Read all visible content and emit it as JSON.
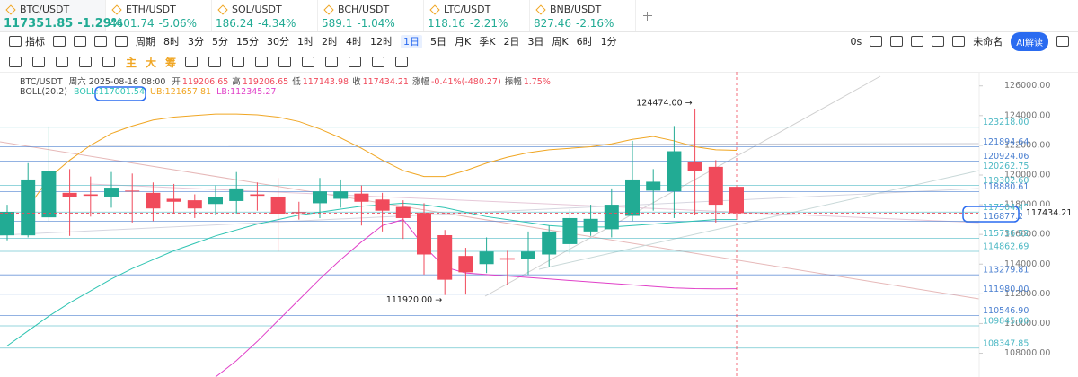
{
  "tickers": [
    {
      "symbol": "BTC/USDT",
      "price": "117351.85",
      "change": "-1.29%"
    },
    {
      "symbol": "ETH/USDT",
      "price": "4401.74",
      "change": "-5.06%"
    },
    {
      "symbol": "SOL/USDT",
      "price": "186.24",
      "change": "-4.34%"
    },
    {
      "symbol": "BCH/USDT",
      "price": "589.1",
      "change": "-1.04%"
    },
    {
      "symbol": "LTC/USDT",
      "price": "118.16",
      "change": "-2.21%"
    },
    {
      "symbol": "BNB/USDT",
      "price": "827.46",
      "change": "-2.16%"
    }
  ],
  "toolbar": {
    "indicator": "指标",
    "period": "周期",
    "intervals": [
      {
        "label": "8时"
      },
      {
        "label": "3分"
      },
      {
        "label": "5分"
      },
      {
        "label": "15分"
      },
      {
        "label": "30分"
      },
      {
        "label": "1时"
      },
      {
        "label": "2时"
      },
      {
        "label": "4时"
      },
      {
        "label": "12时"
      },
      {
        "label": "1日",
        "active": true
      },
      {
        "label": "5日"
      },
      {
        "label": "月K"
      },
      {
        "label": "季K"
      },
      {
        "label": "2日"
      },
      {
        "label": "3日"
      },
      {
        "label": "周K"
      },
      {
        "label": "6时"
      },
      {
        "label": "1分"
      }
    ],
    "timer": "0s",
    "layout_name": "未命名",
    "ai_button": "AI解读"
  },
  "draw_tools": [
    "主",
    "大",
    "筹"
  ],
  "info": {
    "symbol": "BTC/USDT",
    "time": "周六 2025-08-16 08:00",
    "fields": [
      {
        "label": "开",
        "value": "119206.65"
      },
      {
        "label": "高",
        "value": "119206.65"
      },
      {
        "label": "低",
        "value": "117143.98"
      },
      {
        "label": "收",
        "value": "117434.21"
      },
      {
        "label": "涨幅",
        "value": "-0.41%(-480.27)"
      },
      {
        "label": "振幅",
        "value": "1.75%"
      }
    ],
    "indicator": "BOLL(20,2)"
  },
  "chart_data": {
    "type": "candlestick",
    "open": [
      115940,
      115940,
      117150,
      118800,
      118700,
      118550,
      118950,
      118800,
      118400,
      118300,
      118050,
      118250,
      118700,
      118550,
      117500,
      118100,
      118400,
      118750,
      118350,
      117850,
      117450,
      115950,
      114550,
      114000,
      114400,
      114350,
      114650,
      115350,
      116200,
      116350,
      117250,
      118950,
      118900,
      120900,
      120550,
      119206.65
    ],
    "high": [
      118000,
      120800,
      123270,
      120400,
      119900,
      120200,
      120100,
      119500,
      119400,
      118700,
      119300,
      120200,
      119500,
      119800,
      118200,
      119800,
      119700,
      119300,
      118800,
      118300,
      118100,
      116300,
      115100,
      115800,
      114900,
      116200,
      116600,
      117700,
      118000,
      119100,
      122300,
      120400,
      123300,
      124474,
      121000,
      119206.65
    ],
    "low": [
      115600,
      115800,
      116900,
      115900,
      117200,
      117800,
      116800,
      116900,
      117400,
      117100,
      117300,
      117400,
      117600,
      114850,
      117000,
      117100,
      117800,
      116600,
      116200,
      115700,
      113300,
      111920,
      111950,
      113400,
      112600,
      113300,
      113800,
      114700,
      115900,
      115800,
      116900,
      117600,
      117100,
      117300,
      116800,
      117143.98
    ],
    "close": [
      117520,
      119700,
      120300,
      118500,
      118600,
      119150,
      118900,
      117750,
      118200,
      117750,
      118500,
      119100,
      118600,
      117400,
      117450,
      118900,
      118900,
      118200,
      117600,
      117100,
      114650,
      112950,
      113450,
      114850,
      114300,
      114850,
      116200,
      117100,
      117050,
      118000,
      119700,
      119550,
      121600,
      120300,
      118000,
      117434.21
    ],
    "up_color": "#22ab94",
    "down_color": "#f04a5b",
    "series": [
      {
        "name": "BOLL:117001.54",
        "color": "#2fc4b2",
        "values": [
          108500,
          109500,
          110500,
          111400,
          112200,
          113000,
          113700,
          114300,
          114900,
          115400,
          115900,
          116300,
          116700,
          117000,
          117300,
          117500,
          117700,
          117900,
          118000,
          118100,
          118000,
          117800,
          117500,
          117200,
          117000,
          116800,
          116600,
          116500,
          116500,
          116500,
          116600,
          116700,
          116800,
          116900,
          117000,
          117001.54
        ]
      },
      {
        "name": "UB:121657.81",
        "color": "#f0a623",
        "values": [
          null,
          117800,
          119800,
          121000,
          122000,
          122800,
          123300,
          123700,
          123900,
          124000,
          124100,
          124100,
          124050,
          123900,
          123600,
          123100,
          122500,
          121800,
          121000,
          120300,
          119900,
          119900,
          120300,
          120800,
          121200,
          121500,
          121700,
          121800,
          121900,
          122100,
          122400,
          122600,
          122300,
          121900,
          121700,
          121657.81
        ]
      },
      {
        "name": "LB:112345.27",
        "color": "#e040c8",
        "values": [
          null,
          null,
          null,
          null,
          null,
          null,
          null,
          null,
          null,
          null,
          106400,
          107500,
          108800,
          110200,
          111600,
          113000,
          114300,
          115500,
          116600,
          117000,
          115200,
          113800,
          113400,
          113300,
          113200,
          113100,
          113000,
          112900,
          112800,
          112700,
          112600,
          112500,
          112400,
          112350,
          112340,
          112345.27
        ]
      }
    ],
    "ylim": [
      106400,
      126950
    ],
    "yticks": [
      {
        "value": 126000,
        "label": "126000.00"
      },
      {
        "value": 124000,
        "label": "124000.00"
      },
      {
        "value": 122000,
        "label": "122000.00"
      },
      {
        "value": 120000,
        "label": "120000.00"
      },
      {
        "value": 118000,
        "label": "118000.00"
      },
      {
        "value": 116000,
        "label": "116000.00"
      },
      {
        "value": 114000,
        "label": "114000.00"
      },
      {
        "value": 112000,
        "label": "112000.00"
      },
      {
        "value": 110000,
        "label": "110000.00"
      },
      {
        "value": 108000,
        "label": "108000.00"
      }
    ],
    "levels": [
      {
        "value": 123218,
        "label": "123218.00",
        "color": "#4cb8c4"
      },
      {
        "value": 121894.64,
        "label": "121894.64",
        "color": "#4a7fd0"
      },
      {
        "value": 120924.06,
        "label": "120924.06",
        "color": "#4a7fd0"
      },
      {
        "value": 120262.75,
        "label": "120262.75",
        "color": "#4cb8c4"
      },
      {
        "value": 119302.6,
        "label": "119302.60",
        "color": "#4cb8c4"
      },
      {
        "value": 118880.61,
        "label": "118880.61",
        "color": "#4a7fd0"
      },
      {
        "value": 117504.45,
        "label": "117504.45",
        "color": "#4cb8c4"
      },
      {
        "value": 116877.2,
        "label": "116877.2",
        "color": "#4a7fd0"
      },
      {
        "value": 115736.52,
        "label": "115736.52",
        "color": "#4cb8c4"
      },
      {
        "value": 114862.69,
        "label": "114862.69",
        "color": "#4cb8c4"
      },
      {
        "value": 113279.81,
        "label": "113279.81",
        "color": "#4a7fd0"
      },
      {
        "value": 111980,
        "label": "111980.00",
        "color": "#4a7fd0"
      },
      {
        "value": 110546.9,
        "label": "110546.90",
        "color": "#4a7fd0"
      },
      {
        "value": 109845,
        "label": "109845.00",
        "color": "#4cb8c4"
      },
      {
        "value": 108347.85,
        "label": "108347.85",
        "color": "#4cb8c4"
      }
    ],
    "annotations": [
      {
        "text": "124474.00 →",
        "value": 124474
      },
      {
        "text": "111920.00 →",
        "value": 111920
      }
    ]
  }
}
